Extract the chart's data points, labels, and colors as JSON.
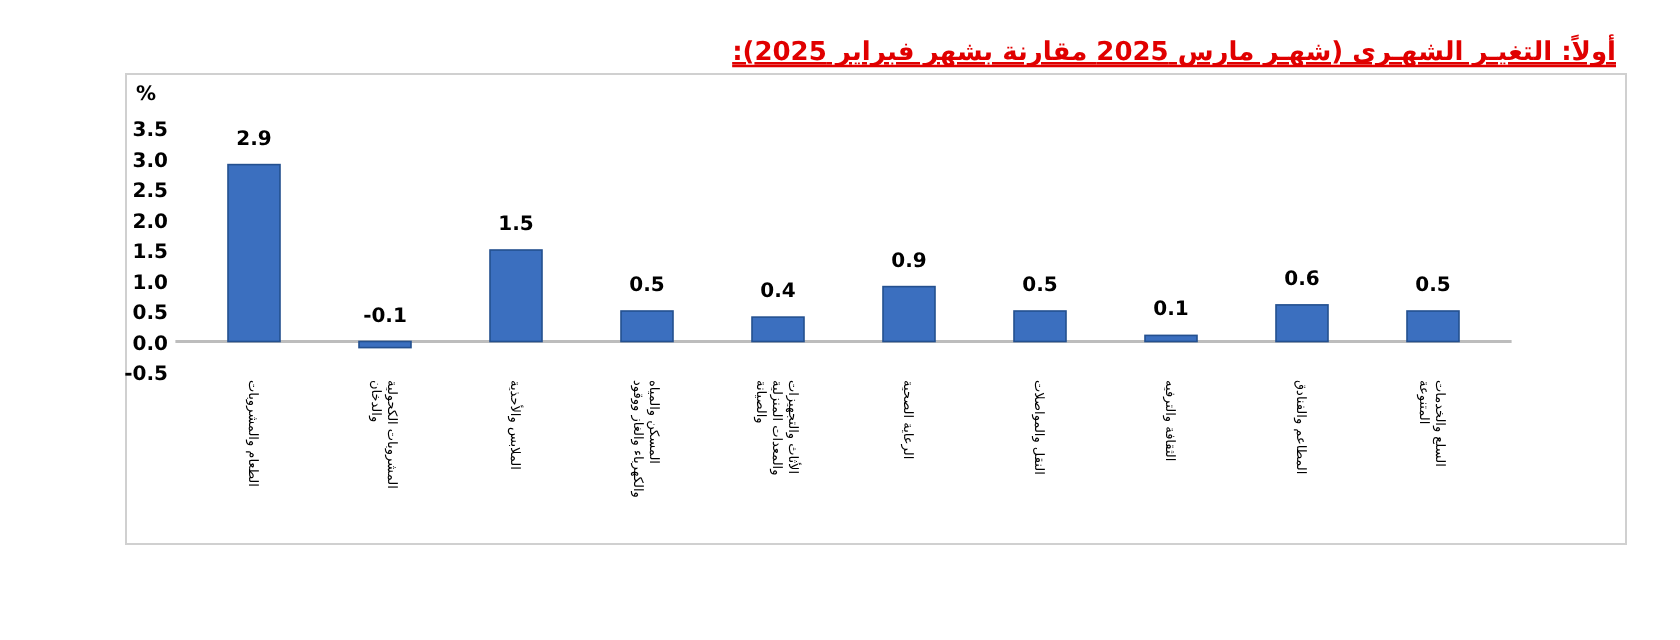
{
  "chart_data": {
    "type": "bar",
    "title": "أولاً: التغيـر الشهـرى (شهـر مارس 2025 مقارنة بشهر فبراير 2025):",
    "ylabel": "%",
    "categories": [
      "الطعام والمشروبات",
      "المشروبات الكحولية والدخان",
      "الملابس والأحذية",
      "المسكن والمياه والكهرباء والغاز ووقود",
      "الأثاث والتجهيزات والمعدات المنزلية والصيانة",
      "الرعاية الصحية",
      "النقل والمواصلات",
      "الثقافة والترفيه",
      "المطاعم والفنادق",
      "السلع والخدمات المتنوعة"
    ],
    "values": [
      2.9,
      -0.1,
      1.5,
      0.5,
      0.4,
      0.9,
      0.5,
      0.1,
      0.6,
      0.5
    ],
    "color": "#3b6fbf",
    "ylim": [
      -0.5,
      3.5
    ],
    "yticks": [
      -0.5,
      {
        "value": 0,
        "label": "0.0"
      },
      0.5,
      {
        "value": 1,
        "label": "1.0"
      },
      1.5,
      {
        "value": 2,
        "label": "2.0"
      },
      2.5,
      {
        "value": 3,
        "label": "3.0"
      },
      3.5
    ],
    "data_labels": true
  }
}
